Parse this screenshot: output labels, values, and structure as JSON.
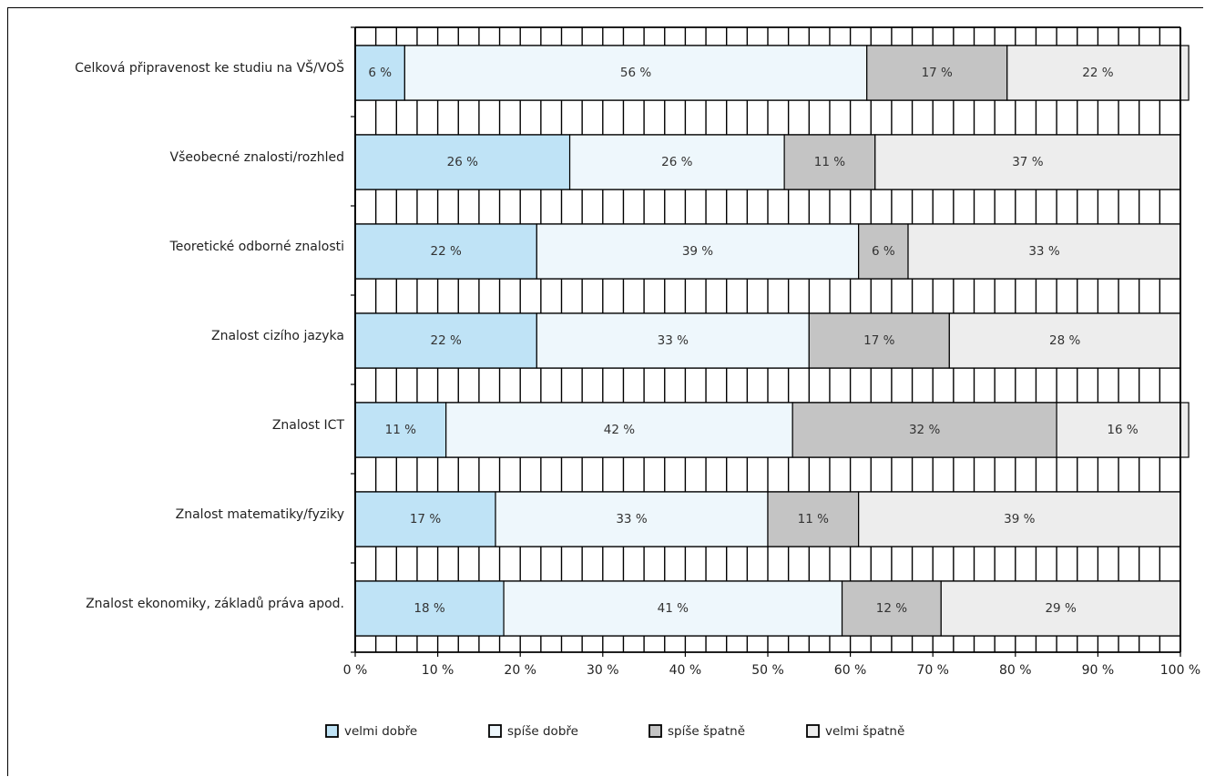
{
  "chart_data": {
    "type": "bar",
    "orientation": "horizontal",
    "stacked": true,
    "categories": [
      "Celková připravenost ke studiu na VŠ/VOŠ",
      "Všeobecné znalosti/rozhled",
      "Teoretické odborné znalosti",
      "Znalost cizího jazyka",
      "Znalost ICT",
      "Znalost matematiky/fyziky",
      "Znalost ekonomiky, základů práva apod."
    ],
    "series": [
      {
        "name": "velmi dobře",
        "color": "#bfe3f6",
        "values": [
          6,
          26,
          22,
          22,
          11,
          17,
          18
        ]
      },
      {
        "name": "spíše dobře",
        "color": "#eef7fc",
        "values": [
          56,
          26,
          39,
          33,
          42,
          33,
          41
        ]
      },
      {
        "name": "spíše špatně",
        "color": "#c4c4c4",
        "values": [
          17,
          11,
          6,
          17,
          32,
          11,
          12
        ]
      },
      {
        "name": "velmi špatně",
        "color": "#ededed",
        "values": [
          22,
          37,
          33,
          28,
          16,
          39,
          29
        ]
      }
    ],
    "data_labels": [
      [
        "6 %",
        "56 %",
        "17 %",
        "22 %"
      ],
      [
        "26 %",
        "26 %",
        "11 %",
        "37 %"
      ],
      [
        "22 %",
        "39 %",
        "6 %",
        "33 %"
      ],
      [
        "22 %",
        "33 %",
        "17 %",
        "28 %"
      ],
      [
        "11 %",
        "42 %",
        "32 %",
        "16 %"
      ],
      [
        "17 %",
        "33 %",
        "11 %",
        "39 %"
      ],
      [
        "18 %",
        "41 %",
        "12 %",
        "29 %"
      ]
    ],
    "x_ticks": [
      "0 %",
      "10 %",
      "20 %",
      "30 %",
      "40 %",
      "50 %",
      "60 %",
      "70 %",
      "80 %",
      "90 %",
      "100 %"
    ],
    "xlim": [
      0,
      100
    ],
    "grid": "vertical hatched bands between bars",
    "legend_position": "bottom",
    "title": "",
    "xlabel": "",
    "ylabel": ""
  }
}
